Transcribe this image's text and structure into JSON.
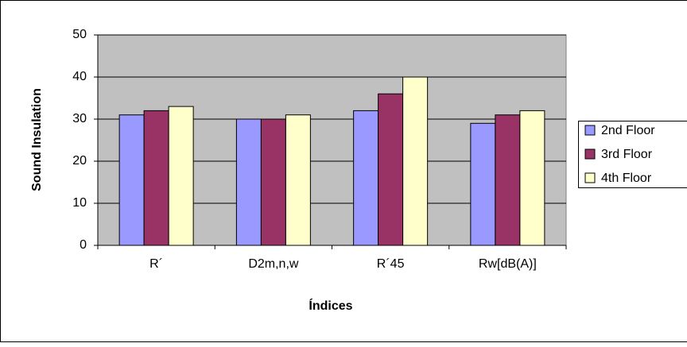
{
  "chart_data": {
    "type": "bar",
    "x_label": "Índices",
    "y_label": "Sound Insulation",
    "categories": [
      "R´",
      "D2m,n,w",
      "R´45",
      "Rw[dB(A)]"
    ],
    "series": [
      {
        "name": "2nd Floor",
        "color": "#9999ff",
        "values": [
          31,
          30,
          32,
          29
        ]
      },
      {
        "name": "3rd Floor",
        "color": "#993366",
        "values": [
          32,
          30,
          36,
          31
        ]
      },
      {
        "name": "4th Floor",
        "color": "#ffffcc",
        "values": [
          33,
          31,
          40,
          32
        ]
      }
    ],
    "ylim": [
      0,
      50
    ],
    "yticks": [
      0,
      10,
      20,
      30,
      40,
      50
    ],
    "grid": true,
    "legend": "right"
  }
}
